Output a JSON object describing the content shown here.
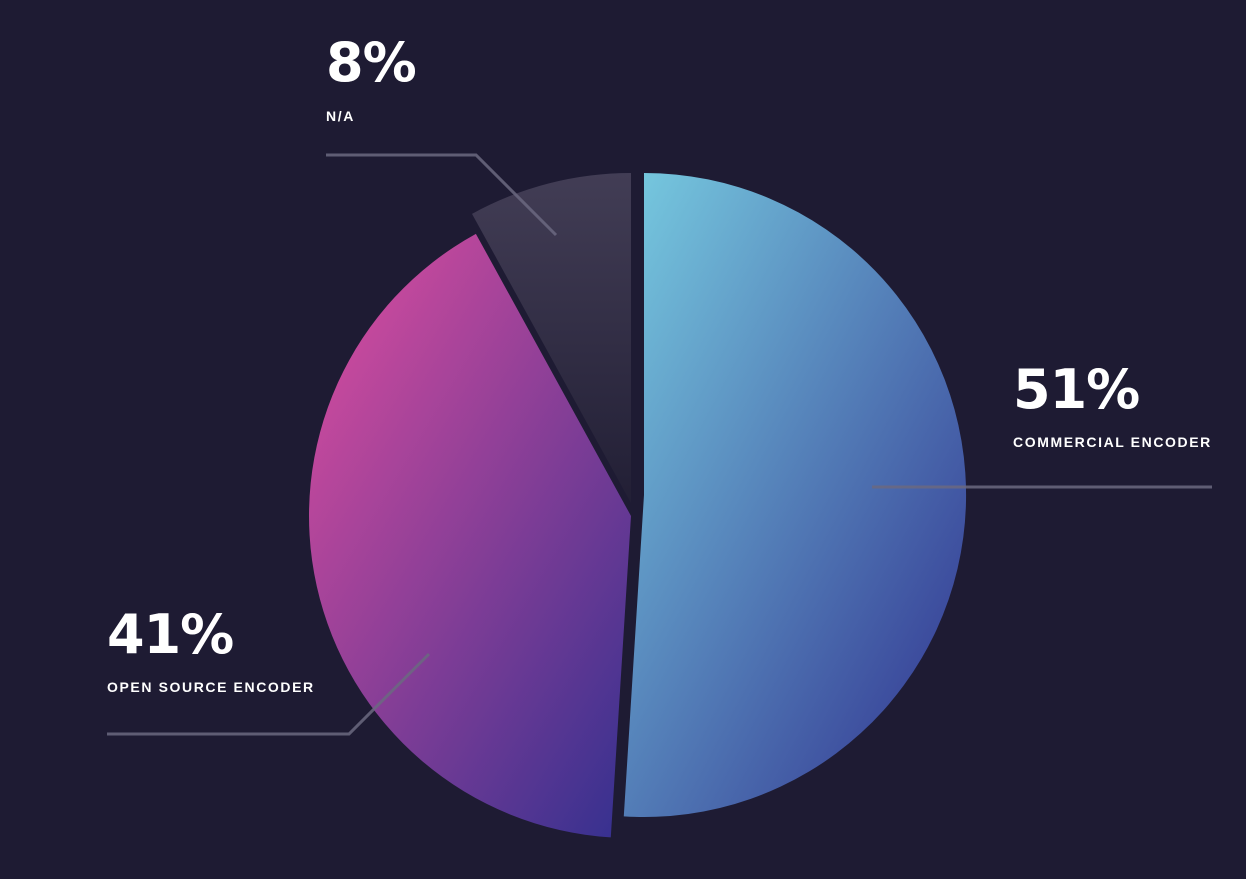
{
  "chart_data": {
    "type": "pie",
    "slices": [
      {
        "label": "COMMERCIAL ENCODER",
        "value": 51,
        "value_label": "51%",
        "color_start": "#77cbe0",
        "color_end": "#2f2f8e"
      },
      {
        "label": "OPEN SOURCE ENCODER",
        "value": 41,
        "value_label": "41%",
        "color_start": "#d84c9e",
        "color_end": "#33308f"
      },
      {
        "label": "N/A",
        "value": 8,
        "value_label": "8%",
        "color_start": "#423d55",
        "color_end": "#221f35"
      }
    ],
    "title": "",
    "legend": "none"
  },
  "colors": {
    "background": "#1e1b33",
    "leader_line": "#6b6880",
    "text": "#ffffff"
  }
}
